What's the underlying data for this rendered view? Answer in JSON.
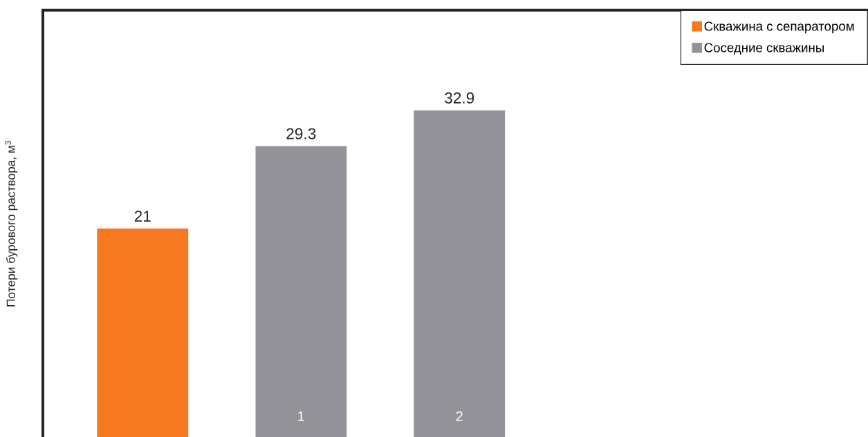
{
  "chart_data": {
    "type": "bar",
    "ylabel": "Потери бурового раствора, м$^{3}$",
    "categories": [
      null,
      "1",
      "2"
    ],
    "series": [
      {
        "name": "Скважина с сепаратором",
        "color": "#f47920",
        "values": [
          21,
          null,
          null
        ]
      },
      {
        "name": "Соседние скважины",
        "color": "#939298",
        "values": [
          null,
          29.3,
          32.9
        ]
      }
    ],
    "ylim": [
      0,
      43
    ],
    "data_labels": true,
    "legend": "top right"
  }
}
